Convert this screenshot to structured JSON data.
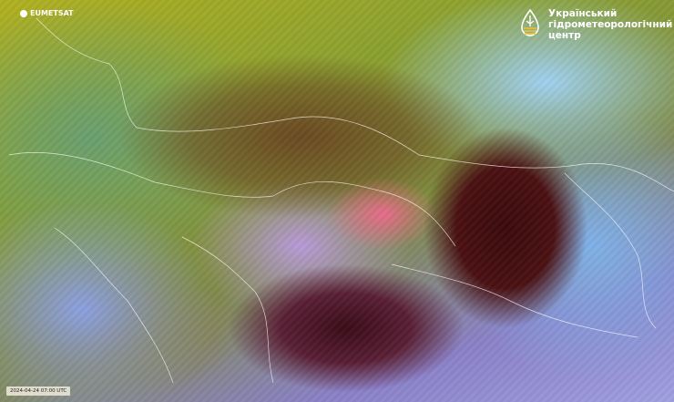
{
  "source_logo": {
    "text": "EUMETSAT"
  },
  "agency_logo": {
    "lines": [
      "Український",
      "гідрометеорологічний",
      "центр"
    ]
  },
  "timestamp": "2024-04-24 07:00 UTC"
}
